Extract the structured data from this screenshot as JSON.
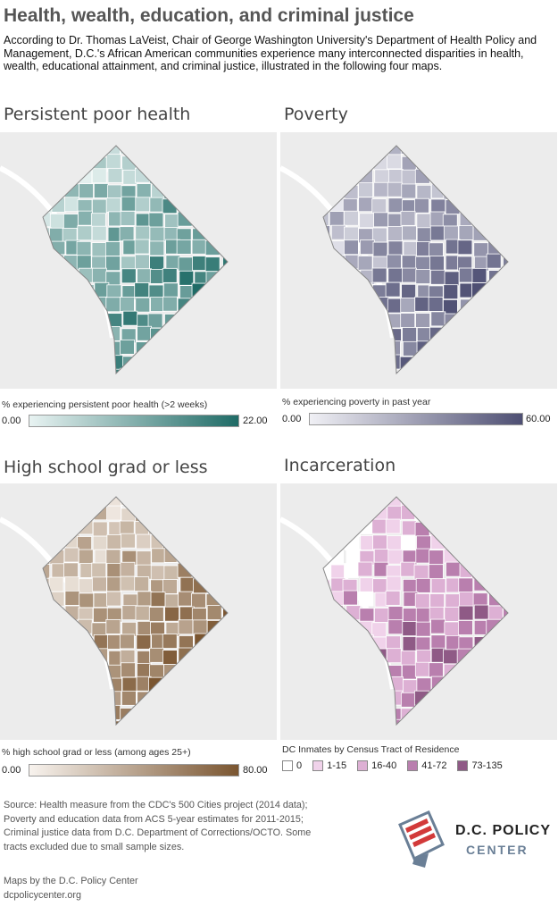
{
  "header": {
    "title": "Health, wealth, education, and criminal justice",
    "intro": "According to Dr. Thomas LaVeist, Chair of George Washington University's Department of Health Policy and Management, D.C.'s African American communities experience many interconnected disparities in health, wealth, educational attainment, and criminal justice, illustrated in the following four maps."
  },
  "maps": [
    {
      "title": "Persistent poor health",
      "legend_label": "% experiencing persistent poor health (>2 weeks)",
      "min": "0.00",
      "max": "22.00",
      "color_low": "#e8f3f2",
      "color_high": "#1f6b66"
    },
    {
      "title": "Poverty",
      "legend_label": "% experiencing poverty in past year",
      "min": "0.00",
      "max": "60.00",
      "color_low": "#f0f0f5",
      "color_high": "#4e4f73"
    },
    {
      "title": "High school grad or less",
      "legend_label": "% high school grad or less (among ages 25+)",
      "min": "0.00",
      "max": "80.00",
      "color_low": "#f8f3ee",
      "color_high": "#7a5530"
    },
    {
      "title": "Incarceration",
      "legend_label": "DC Inmates by Census Tract of Residence",
      "categories": [
        {
          "label": "0",
          "color": "#ffffff"
        },
        {
          "label": "1-15",
          "color": "#f0d2ea"
        },
        {
          "label": "16-40",
          "color": "#ddb0d4"
        },
        {
          "label": "41-72",
          "color": "#b97fae"
        },
        {
          "label": "73-135",
          "color": "#8f5a86"
        }
      ]
    }
  ],
  "footer": {
    "source_lines": [
      "Source: Health measure from the CDC's 500 Cities project (2014 data);",
      "Poverty and education data from ACS 5-year estimates for 2011-2015;",
      "Criminal justice data from D.C. Department of Corrections/OCTO. Some",
      "tracts excluded due to small sample sizes."
    ],
    "credit_lines": [
      "Maps by the D.C. Policy Center",
      "dcpolicycenter.org"
    ],
    "logo_line1": "D.C. POLICY",
    "logo_line2": "CENTER"
  }
}
